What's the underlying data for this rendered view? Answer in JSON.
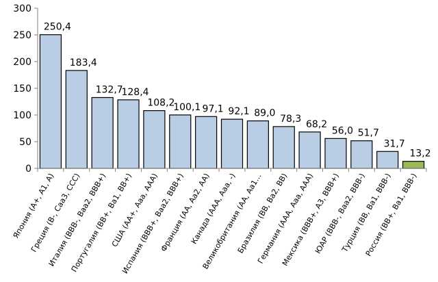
{
  "chart_data": {
    "type": "bar",
    "title": "",
    "xlabel": "",
    "ylabel": "",
    "ylim": [
      0,
      300
    ],
    "yticks": [
      "0",
      "50",
      "100",
      "150",
      "200",
      "250",
      "300"
    ],
    "grid": false,
    "legend": "none",
    "categories": [
      "Япония (A+, A1, A)",
      "Греция (B-, Caa3, CCC)",
      "Италия (BBB-, Baa2, BBB+)",
      "Португалия (BB+, Ba1, BB+)",
      "США (AA+, Aaa, AAA)",
      "Испания (BBB+, Baa2, BBB+)",
      "Франция (AA, Aa2, AA)",
      "Канада (AAA, Aaa, -)",
      "Великобритания (AA, Aa1…",
      "Бразилия (BB, Ba2, BB)",
      "Германия (AAA, Aaa, AAA)",
      "Мексика (BBB+, A3, BBB+)",
      "ЮАР (BBB-, Baa2, BBB-)",
      "Турция (BB, Ba1, BBB-)",
      "Россия (BB+, Ba1, BBB-)"
    ],
    "values": [
      250.4,
      183.4,
      132.7,
      128.4,
      108.2,
      100.1,
      97.1,
      92.1,
      89.0,
      78.3,
      68.2,
      56.0,
      51.7,
      31.7,
      13.2
    ],
    "value_labels": [
      "250,4",
      "183,4",
      "132,7",
      "128,4",
      "108,2",
      "100,1",
      "97,1",
      "92,1",
      "89,0",
      "78,3",
      "68,2",
      "56,0",
      "51,7",
      "31,7",
      "13,2"
    ],
    "colors": {
      "bar": "#b9cde5",
      "highlight": "#9bbb59",
      "highlight_index": 14,
      "outline": "#000000",
      "axis": "#808080"
    }
  }
}
